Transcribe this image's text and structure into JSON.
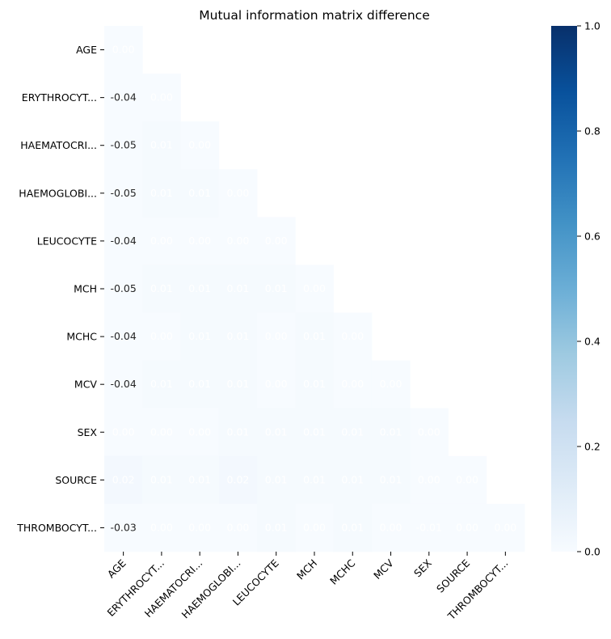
{
  "chart_data": {
    "type": "heatmap",
    "title": "Mutual information matrix difference",
    "mask": "upper-triangle",
    "labels": [
      "AGE",
      "ERYTHROCYT...",
      "HAEMATOCRI...",
      "HAEMOGLOBI...",
      "LEUCOCYTE",
      "MCH",
      "MCHC",
      "MCV",
      "SEX",
      "SOURCE",
      "THROMBOCYT..."
    ],
    "values": [
      [
        0.0
      ],
      [
        -0.04,
        0.0
      ],
      [
        -0.05,
        0.01,
        0.0
      ],
      [
        -0.05,
        0.01,
        0.01,
        0.0
      ],
      [
        -0.04,
        0.0,
        0.0,
        0.0,
        0.0
      ],
      [
        -0.05,
        0.01,
        0.01,
        0.01,
        0.01,
        0.0
      ],
      [
        -0.04,
        0.0,
        0.01,
        0.01,
        0.0,
        0.01,
        0.0
      ],
      [
        -0.04,
        0.01,
        0.01,
        0.01,
        0.0,
        0.01,
        0.0,
        0.0
      ],
      [
        0.0,
        0.0,
        0.0,
        0.01,
        0.01,
        0.01,
        0.01,
        0.01,
        0.0
      ],
      [
        0.02,
        0.01,
        0.01,
        0.02,
        0.01,
        0.01,
        0.01,
        0.01,
        0.0,
        0.0
      ],
      [
        -0.03,
        0.0,
        0.0,
        0.0,
        0.01,
        0.0,
        0.01,
        0.0,
        -0.01,
        0.0,
        0.0
      ]
    ],
    "colorbar": {
      "colormap": "Blues",
      "vmin": 0.0,
      "vmax": 1.0,
      "ticks": [
        "0.0",
        "0.2",
        "0.4",
        "0.6",
        "0.8",
        "1.0"
      ]
    }
  }
}
